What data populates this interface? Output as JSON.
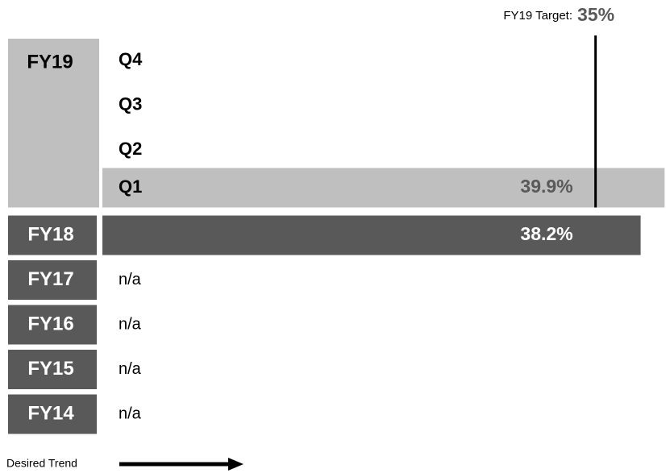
{
  "chart_data": {
    "type": "bar",
    "target": {
      "label": "FY19 Target:",
      "value": 35,
      "value_label": "35%"
    },
    "xlim": [
      0,
      40
    ],
    "groups": [
      {
        "name": "FY19",
        "categories": [
          "Q4",
          "Q3",
          "Q2",
          "Q1"
        ],
        "values": [
          null,
          null,
          null,
          39.9
        ],
        "value_labels": [
          null,
          null,
          null,
          "39.9%"
        ],
        "color": "#bfbfbf"
      },
      {
        "name": "FY18",
        "values": [
          38.2
        ],
        "value_labels": [
          "38.2%"
        ],
        "color": "#595959"
      },
      {
        "name": "FY17",
        "values": [
          null
        ],
        "value_labels": [
          "n/a"
        ],
        "color": "#595959"
      },
      {
        "name": "FY16",
        "values": [
          null
        ],
        "value_labels": [
          "n/a"
        ],
        "color": "#595959"
      },
      {
        "name": "FY15",
        "values": [
          null
        ],
        "value_labels": [
          "n/a"
        ],
        "color": "#595959"
      },
      {
        "name": "FY14",
        "values": [
          null
        ],
        "value_labels": [
          "n/a"
        ],
        "color": "#595959"
      }
    ],
    "legend": "Desired Trend"
  }
}
